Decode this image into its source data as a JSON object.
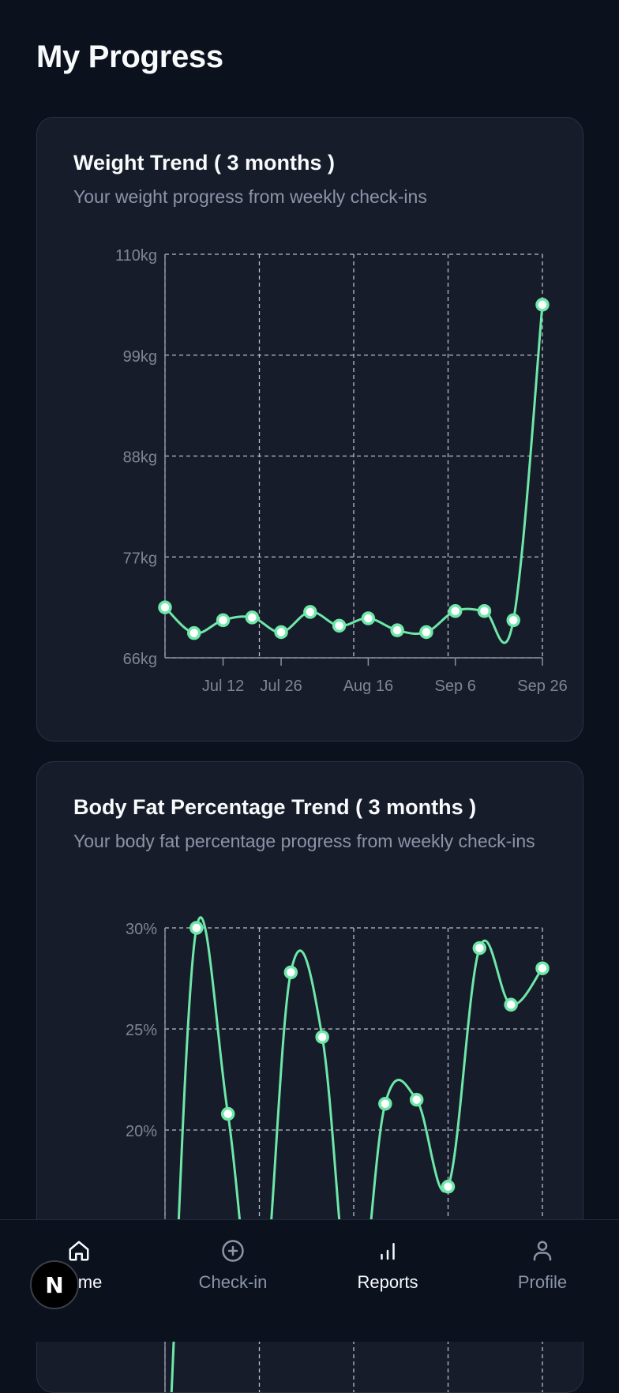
{
  "page": {
    "title": "My Progress"
  },
  "weight_card": {
    "title": "Weight Trend ( 3 months )",
    "subtitle": "Your weight progress from weekly check-ins"
  },
  "bodyfat_card": {
    "title": "Body Fat Percentage Trend ( 3 months )",
    "subtitle": "Your body fat percentage progress from weekly check-ins"
  },
  "nav": {
    "home_label": "Home",
    "checkin_label": "Check-in",
    "reports_label": "Reports",
    "profile_label": "Profile"
  },
  "badge": {
    "letter": "N"
  },
  "colors": {
    "line": "#6ee7a8",
    "grid": "#b8bec9",
    "axis_text": "#7d8596",
    "card_bg": "#161c2a"
  },
  "chart_data": [
    {
      "type": "line",
      "title": "Weight Trend ( 3 months )",
      "ylim": [
        66,
        110
      ],
      "y_ticks": [
        "66kg",
        "77kg",
        "88kg",
        "99kg",
        "110kg"
      ],
      "x_ticks": [
        "Jul 12",
        "Jul 26",
        "Aug 16",
        "Sep 6",
        "Sep 26"
      ],
      "grid": true,
      "series": [
        {
          "values": [
            71.5,
            68.7,
            70.1,
            70.4,
            68.8,
            71.0,
            69.5,
            70.3,
            69.0,
            68.8,
            71.1,
            71.1,
            70.1,
            104.5
          ]
        }
      ]
    },
    {
      "type": "line",
      "title": "Body Fat Percentage Trend ( 3 months )",
      "ylim": [
        15,
        30
      ],
      "y_ticks": [
        "20%",
        "25%",
        "30%"
      ],
      "grid": true,
      "series": [
        {
          "values": [
            null,
            30.0,
            20.8,
            10.0,
            27.8,
            24.6,
            10.0,
            21.3,
            21.5,
            17.2,
            29.0,
            26.2,
            28.0
          ]
        }
      ]
    }
  ]
}
